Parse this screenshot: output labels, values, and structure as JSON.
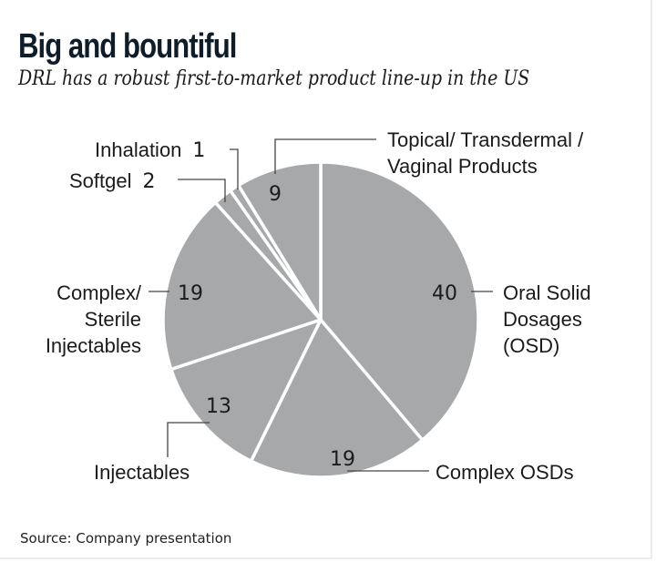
{
  "header": {
    "title": "Big and bountiful",
    "subtitle": "DRL has a robust first-to-market product line-up in the US"
  },
  "footer": {
    "source": "Source: Company presentation"
  },
  "colors": {
    "slice": "#a7a8aa",
    "separator": "#ffffff",
    "text": "#1b1b1b",
    "leader": "#444444"
  },
  "chart_data": {
    "type": "pie",
    "title": "Big and bountiful",
    "subtitle": "DRL has a robust first-to-market product line-up in the US",
    "start_angle": "12 o'clock",
    "direction": "clockwise",
    "slices": [
      {
        "key": "osd",
        "label": "Oral Solid Dosages (OSD)",
        "label_lines": [
          "Oral Solid",
          "Dosages",
          "(OSD)"
        ],
        "value": 40
      },
      {
        "key": "complex-osds",
        "label": "Complex OSDs",
        "label_lines": [
          "Complex OSDs"
        ],
        "value": 19
      },
      {
        "key": "injectables",
        "label": "Injectables",
        "label_lines": [
          "Injectables"
        ],
        "value": 13
      },
      {
        "key": "complex-sterile-injectables",
        "label": "Complex/ Sterile Injectables",
        "label_lines": [
          "Complex/",
          "Sterile",
          "Injectables"
        ],
        "value": 19
      },
      {
        "key": "softgel",
        "label": "Softgel",
        "label_lines": [
          "Softgel"
        ],
        "value": 2
      },
      {
        "key": "inhalation",
        "label": "Inhalation",
        "label_lines": [
          "Inhalation"
        ],
        "value": 1
      },
      {
        "key": "topical",
        "label": "Topical/ Transdermal / Vaginal Products",
        "label_lines": [
          "Topical/ Transdermal /",
          "Vaginal Products"
        ],
        "value": 9
      }
    ]
  }
}
